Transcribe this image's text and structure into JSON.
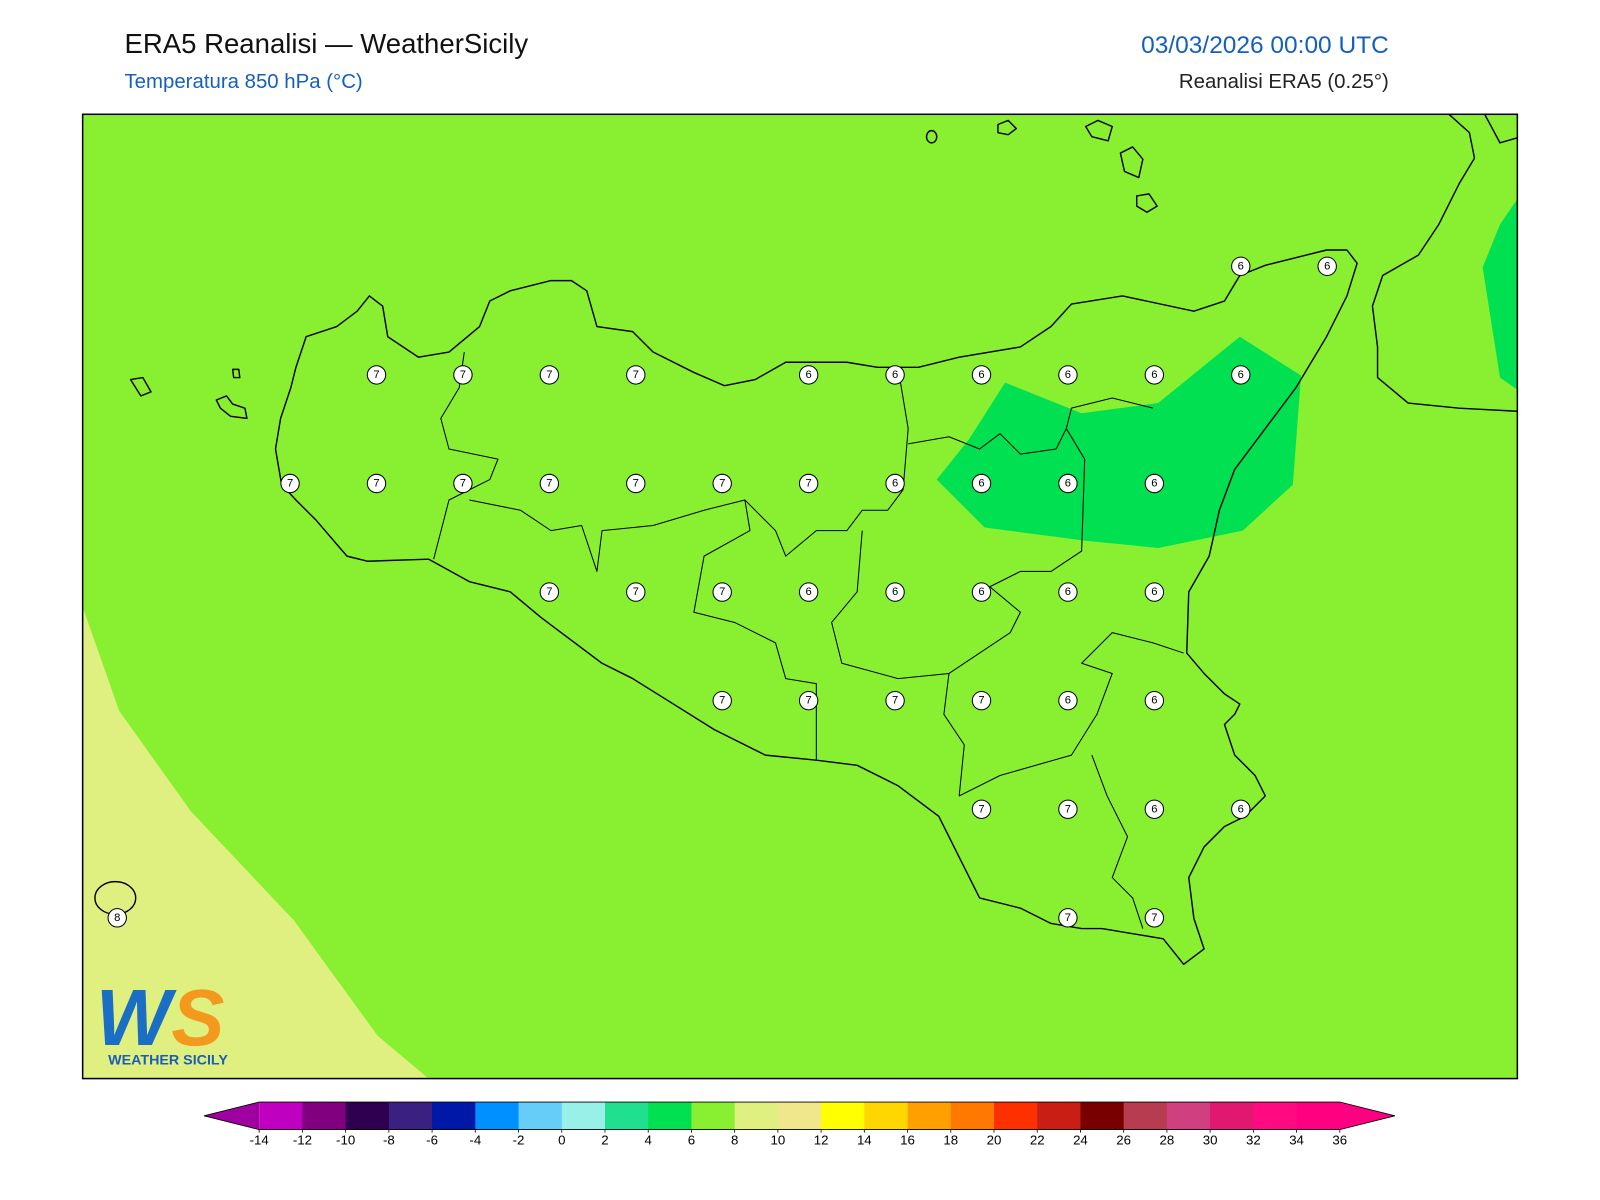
{
  "header": {
    "title": "ERA5 Reanalisi — WeatherSicily",
    "subtitle": "Temperatura 850 hPa (°C)",
    "valid_time": "03/03/2026 00:00 UTC",
    "source": "Reanalisi ERA5 (0.25°)"
  },
  "map": {
    "extent": {
      "lon": [
        11.9,
        16.05
      ],
      "lat": [
        36.38,
        38.6
      ]
    },
    "points": [
      {
        "lon": 15.25,
        "lat": 38.25,
        "value": 6
      },
      {
        "lon": 15.5,
        "lat": 38.25,
        "value": 6
      },
      {
        "lon": 12.75,
        "lat": 38.0,
        "value": 7
      },
      {
        "lon": 13.0,
        "lat": 38.0,
        "value": 7
      },
      {
        "lon": 13.25,
        "lat": 38.0,
        "value": 7
      },
      {
        "lon": 13.5,
        "lat": 38.0,
        "value": 7
      },
      {
        "lon": 14.0,
        "lat": 38.0,
        "value": 6
      },
      {
        "lon": 14.25,
        "lat": 38.0,
        "value": 6
      },
      {
        "lon": 14.5,
        "lat": 38.0,
        "value": 6
      },
      {
        "lon": 14.75,
        "lat": 38.0,
        "value": 6
      },
      {
        "lon": 15.0,
        "lat": 38.0,
        "value": 6
      },
      {
        "lon": 15.25,
        "lat": 38.0,
        "value": 6
      },
      {
        "lon": 12.5,
        "lat": 37.75,
        "value": 7
      },
      {
        "lon": 12.75,
        "lat": 37.75,
        "value": 7
      },
      {
        "lon": 13.0,
        "lat": 37.75,
        "value": 7
      },
      {
        "lon": 13.25,
        "lat": 37.75,
        "value": 7
      },
      {
        "lon": 13.5,
        "lat": 37.75,
        "value": 7
      },
      {
        "lon": 13.75,
        "lat": 37.75,
        "value": 7
      },
      {
        "lon": 14.0,
        "lat": 37.75,
        "value": 7
      },
      {
        "lon": 14.25,
        "lat": 37.75,
        "value": 6
      },
      {
        "lon": 14.5,
        "lat": 37.75,
        "value": 6
      },
      {
        "lon": 14.75,
        "lat": 37.75,
        "value": 6
      },
      {
        "lon": 15.0,
        "lat": 37.75,
        "value": 6
      },
      {
        "lon": 13.25,
        "lat": 37.5,
        "value": 7
      },
      {
        "lon": 13.5,
        "lat": 37.5,
        "value": 7
      },
      {
        "lon": 13.75,
        "lat": 37.5,
        "value": 7
      },
      {
        "lon": 14.0,
        "lat": 37.5,
        "value": 6
      },
      {
        "lon": 14.25,
        "lat": 37.5,
        "value": 6
      },
      {
        "lon": 14.5,
        "lat": 37.5,
        "value": 6
      },
      {
        "lon": 14.75,
        "lat": 37.5,
        "value": 6
      },
      {
        "lon": 15.0,
        "lat": 37.5,
        "value": 6
      },
      {
        "lon": 13.75,
        "lat": 37.25,
        "value": 7
      },
      {
        "lon": 14.0,
        "lat": 37.25,
        "value": 7
      },
      {
        "lon": 14.25,
        "lat": 37.25,
        "value": 7
      },
      {
        "lon": 14.5,
        "lat": 37.25,
        "value": 7
      },
      {
        "lon": 14.75,
        "lat": 37.25,
        "value": 6
      },
      {
        "lon": 15.0,
        "lat": 37.25,
        "value": 6
      },
      {
        "lon": 14.5,
        "lat": 37.0,
        "value": 7
      },
      {
        "lon": 14.75,
        "lat": 37.0,
        "value": 7
      },
      {
        "lon": 15.0,
        "lat": 37.0,
        "value": 6
      },
      {
        "lon": 15.25,
        "lat": 37.0,
        "value": 6
      },
      {
        "lon": 14.75,
        "lat": 36.75,
        "value": 7
      },
      {
        "lon": 15.0,
        "lat": 36.75,
        "value": 7
      },
      {
        "lon": 12.0,
        "lat": 36.75,
        "value": 8
      }
    ]
  },
  "colorbar": {
    "ticks": [
      -14,
      -12,
      -10,
      -8,
      -6,
      -4,
      -2,
      0,
      2,
      4,
      6,
      8,
      10,
      12,
      14,
      16,
      18,
      20,
      22,
      24,
      26,
      28,
      30,
      32,
      34,
      36
    ],
    "colors": [
      "#c000c0",
      "#800080",
      "#300050",
      "#3a2080",
      "#0018a8",
      "#0090ff",
      "#66ccf8",
      "#99f0e8",
      "#20e090",
      "#00e050",
      "#88f030",
      "#e0f080",
      "#f0e68c",
      "#ffff00",
      "#ffd700",
      "#ffa000",
      "#ff7800",
      "#ff3000",
      "#c81e14",
      "#780000",
      "#b83c50",
      "#d04080",
      "#e01870",
      "#ff0a80",
      "#ff0080"
    ],
    "under": "#a000a0",
    "over": "#ff0080"
  },
  "logo": {
    "letters": [
      "W",
      "S"
    ],
    "name": "WEATHER SICILY"
  }
}
